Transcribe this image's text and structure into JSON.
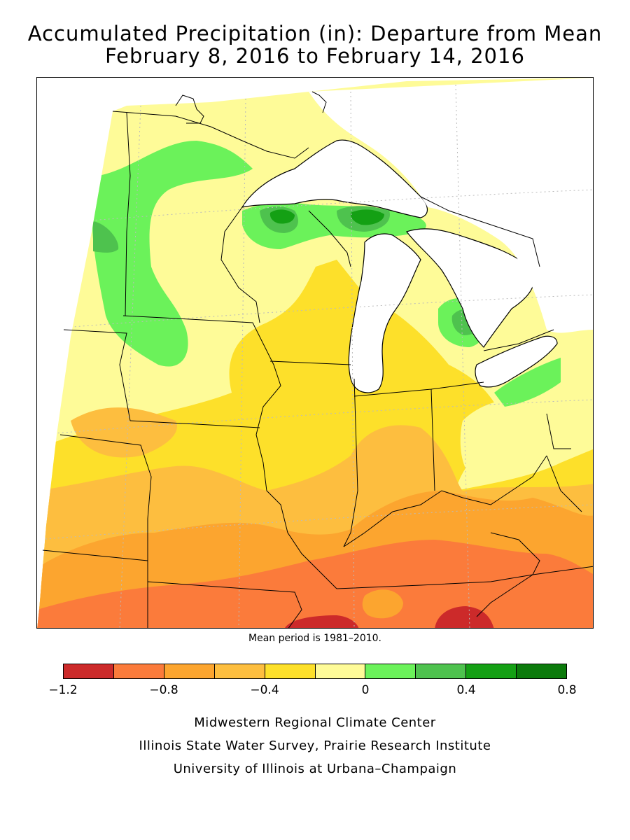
{
  "title_line1": "Accumulated Precipitation (in): Departure from Mean",
  "title_line2": "February 8, 2016 to February 14, 2016",
  "mean_note": "Mean period is 1981–2010.",
  "legend": {
    "colors": [
      "#cc2a2a",
      "#fb7b3b",
      "#fca52f",
      "#fdbe3f",
      "#fde02a",
      "#fefb98",
      "#6bf25a",
      "#4ec24e",
      "#14a014",
      "#0b7a0b"
    ],
    "tick_labels": [
      "−1.2",
      "−0.8",
      "−0.4",
      "0",
      "0.4",
      "0.8"
    ],
    "tick_values": [
      -1.2,
      -0.8,
      -0.4,
      0,
      0.4,
      0.8
    ],
    "range": [
      -1.2,
      0.8
    ]
  },
  "map": {
    "units": "inches",
    "classes": [
      {
        "range": [
          -1.2,
          -1.0
        ],
        "color": "#cc2a2a"
      },
      {
        "range": [
          -1.0,
          -0.8
        ],
        "color": "#fb7b3b"
      },
      {
        "range": [
          -0.8,
          -0.6
        ],
        "color": "#fca52f"
      },
      {
        "range": [
          -0.6,
          -0.4
        ],
        "color": "#fdbe3f"
      },
      {
        "range": [
          -0.4,
          -0.2
        ],
        "color": "#fde02a"
      },
      {
        "range": [
          -0.2,
          0.0
        ],
        "color": "#fefb98"
      },
      {
        "range": [
          0.0,
          0.2
        ],
        "color": "#6bf25a"
      },
      {
        "range": [
          0.2,
          0.4
        ],
        "color": "#4ec24e"
      },
      {
        "range": [
          0.4,
          0.6
        ],
        "color": "#14a014"
      },
      {
        "range": [
          0.6,
          0.8
        ],
        "color": "#0b7a0b"
      }
    ]
  },
  "credits": [
    "Midwestern Regional Climate Center",
    "Illinois State Water Survey, Prairie Research Institute",
    "University of Illinois at Urbana–Champaign"
  ]
}
